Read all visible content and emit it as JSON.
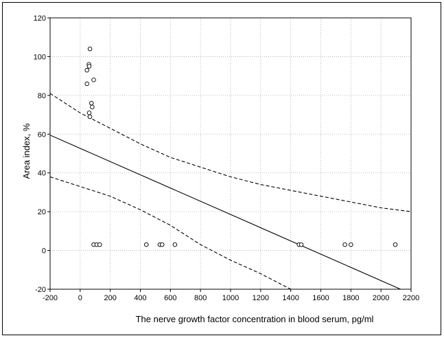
{
  "chart_data": {
    "type": "scatter",
    "xlabel": "The nerve growth factor concentration in blood serum, pg/ml",
    "ylabel": "Area index, %",
    "xlim": [
      -200,
      2200
    ],
    "ylim": [
      -20,
      120
    ],
    "xticks": [
      -200,
      0,
      200,
      400,
      600,
      800,
      1000,
      1200,
      1400,
      1600,
      1800,
      2000,
      2200
    ],
    "yticks": [
      -20,
      0,
      20,
      40,
      60,
      80,
      100,
      120
    ],
    "grid": true,
    "points": [
      {
        "x": 65,
        "y": 104
      },
      {
        "x": 58,
        "y": 96
      },
      {
        "x": 60,
        "y": 95
      },
      {
        "x": 45,
        "y": 93
      },
      {
        "x": 90,
        "y": 88
      },
      {
        "x": 45,
        "y": 86
      },
      {
        "x": 75,
        "y": 76
      },
      {
        "x": 80,
        "y": 74
      },
      {
        "x": 60,
        "y": 71
      },
      {
        "x": 65,
        "y": 69
      },
      {
        "x": 90,
        "y": 3
      },
      {
        "x": 110,
        "y": 3
      },
      {
        "x": 130,
        "y": 3
      },
      {
        "x": 440,
        "y": 3
      },
      {
        "x": 530,
        "y": 3
      },
      {
        "x": 545,
        "y": 3
      },
      {
        "x": 630,
        "y": 3
      },
      {
        "x": 1455,
        "y": 3
      },
      {
        "x": 1470,
        "y": 3
      },
      {
        "x": 1760,
        "y": 3
      },
      {
        "x": 1800,
        "y": 3
      },
      {
        "x": 2095,
        "y": 3
      }
    ],
    "regression_line": {
      "style": "solid",
      "x": [
        -200,
        2130
      ],
      "y": [
        59.5,
        -20
      ]
    },
    "confidence_upper": {
      "style": "dashed",
      "x": [
        -200,
        0,
        200,
        400,
        600,
        800,
        1000,
        1200,
        1400,
        1600,
        1800,
        2000,
        2200
      ],
      "y": [
        81,
        71,
        63,
        55,
        48,
        43,
        38,
        34,
        31,
        28,
        25,
        22,
        20
      ]
    },
    "confidence_lower": {
      "style": "dashed",
      "x": [
        -200,
        0,
        200,
        400,
        600,
        800,
        1000,
        1200,
        1400
      ],
      "y": [
        38,
        33,
        28,
        21,
        13,
        3,
        -5,
        -12,
        -20
      ]
    }
  }
}
